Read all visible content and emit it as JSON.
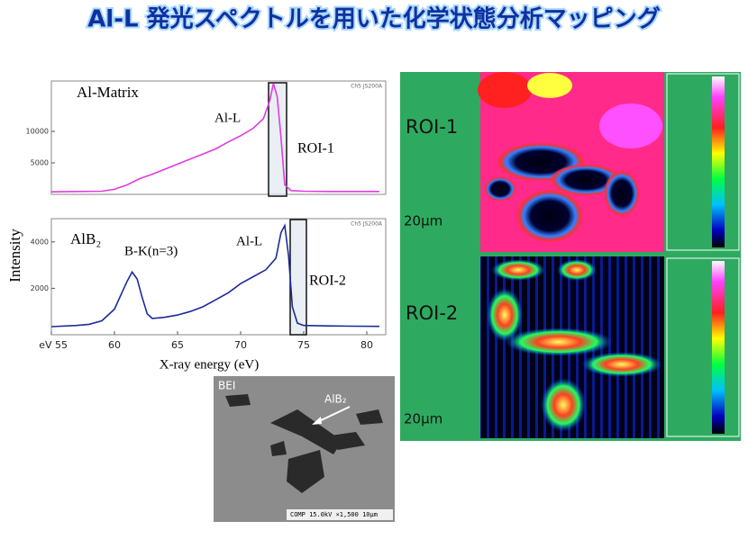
{
  "title": "Al-L 発光スペクトルを用いた化学状態分析マッピング",
  "spectra_axis_label": "Intensity",
  "chart_data": [
    {
      "type": "line",
      "label": "Al-Matrix",
      "peak_labels": [
        "Al-L"
      ],
      "roi_label": "ROI-1",
      "instrument": "Ch5  JS200A",
      "x": [
        55,
        57,
        59,
        60,
        61,
        62,
        63,
        64,
        65,
        66,
        67,
        68,
        69,
        70,
        71,
        71.8,
        72.3,
        72.6,
        72.9,
        73.2,
        73.5,
        74,
        75,
        77,
        79,
        81
      ],
      "series": [
        {
          "color": "#e03ce0",
          "values": [
            400,
            450,
            500,
            800,
            1500,
            2500,
            3200,
            4000,
            4800,
            5600,
            6400,
            7200,
            8300,
            9300,
            10500,
            12000,
            14800,
            17600,
            15500,
            9000,
            1500,
            600,
            500,
            450,
            450,
            450
          ]
        }
      ],
      "xlim": [
        55,
        81.5
      ],
      "ylim": [
        0,
        18000
      ],
      "yticks": [
        5000,
        10000
      ]
    },
    {
      "type": "line",
      "label": "AlB₂",
      "peak_labels": [
        "B-K(n=3)",
        "Al-L"
      ],
      "roi_label": "ROI-2",
      "instrument": "Ch5  JS200A",
      "x_label": "X-ray energy (eV)",
      "x": [
        55,
        57,
        58,
        59,
        60,
        60.5,
        61,
        61.4,
        61.8,
        62.2,
        62.6,
        63,
        64,
        65,
        66,
        67,
        68,
        69,
        70,
        71,
        72,
        72.8,
        73.2,
        73.5,
        73.8,
        74.1,
        74.5,
        75,
        77,
        79,
        81
      ],
      "series": [
        {
          "color": "#1c2a9c",
          "values": [
            350,
            400,
            450,
            600,
            1100,
            1700,
            2300,
            2700,
            2400,
            1600,
            900,
            700,
            750,
            850,
            1000,
            1200,
            1500,
            1800,
            2200,
            2500,
            2800,
            3300,
            4400,
            4700,
            3400,
            1200,
            500,
            400,
            380,
            370,
            360
          ]
        }
      ],
      "xlim": [
        55,
        81.5
      ],
      "ylim": [
        0,
        5000
      ],
      "yticks": [
        2000,
        4000
      ],
      "xticks": [
        {
          "value": 55,
          "label": "eV 55"
        },
        60,
        65,
        70,
        75,
        80
      ]
    }
  ],
  "maps": [
    {
      "label": "ROI-1",
      "scale": "20μm"
    },
    {
      "label": "ROI-2",
      "scale": "20μm"
    }
  ],
  "bei": {
    "label": "BEI",
    "phase": "AlB₂",
    "footer": "COMP  15.0kV  ×1,500   10μm"
  }
}
